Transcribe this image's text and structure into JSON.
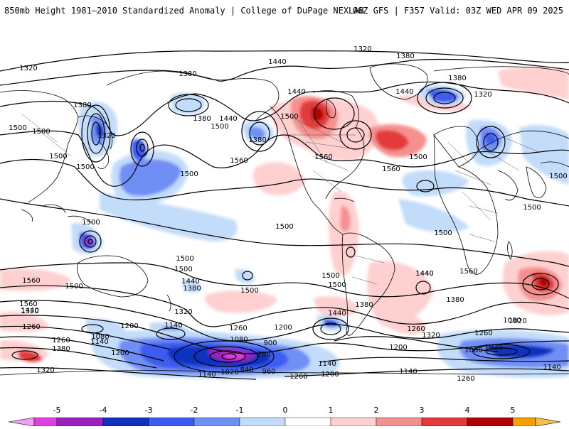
{
  "header": {
    "title": "850mb Height 1981–2010 Standardized Anomaly | College of DuPage NEXLAB",
    "run_info": "06Z GFS | F357 Valid: 03Z WED APR 09 2025"
  },
  "map": {
    "contour_labels": [
      {
        "id": "c1320a",
        "text": "1320"
      },
      {
        "id": "c1320b",
        "text": "1320"
      },
      {
        "id": "c1380a",
        "text": "1380"
      },
      {
        "id": "c1380b",
        "text": "1380"
      },
      {
        "id": "c1440a",
        "text": "1440"
      },
      {
        "id": "c1380c",
        "text": "1380"
      },
      {
        "id": "c1440b",
        "text": "1440"
      },
      {
        "id": "c1380d",
        "text": "1380"
      },
      {
        "id": "c1320c",
        "text": "1320"
      },
      {
        "id": "c1500a",
        "text": "1500"
      },
      {
        "id": "c1500b",
        "text": "1500"
      },
      {
        "id": "c1440c",
        "text": "1440"
      },
      {
        "id": "c1500c",
        "text": "1500"
      },
      {
        "id": "c1380e",
        "text": "1380"
      },
      {
        "id": "c1320d",
        "text": "1320"
      },
      {
        "id": "c1440d",
        "text": "1440"
      },
      {
        "id": "c1500d",
        "text": "1500"
      },
      {
        "id": "c1560a",
        "text": "1560"
      },
      {
        "id": "c1500e",
        "text": "1500"
      },
      {
        "id": "c1380f",
        "text": "1380"
      },
      {
        "id": "c1500f",
        "text": "1500"
      },
      {
        "id": "c1560b",
        "text": "1560"
      },
      {
        "id": "c1500g",
        "text": "1500"
      },
      {
        "id": "c1560c",
        "text": "1560"
      },
      {
        "id": "c1500h",
        "text": "1500"
      },
      {
        "id": "c1500i",
        "text": "1500"
      },
      {
        "id": "c1560d",
        "text": "1560"
      },
      {
        "id": "c1440e",
        "text": "1440"
      },
      {
        "id": "c1500j",
        "text": "1500"
      },
      {
        "id": "c1500k",
        "text": "1500"
      },
      {
        "id": "c1500l",
        "text": "1500"
      },
      {
        "id": "c1500m",
        "text": "1500"
      },
      {
        "id": "c1500n",
        "text": "1500"
      },
      {
        "id": "c1500o",
        "text": "1500"
      },
      {
        "id": "c1500p",
        "text": "1500"
      },
      {
        "id": "c1560e",
        "text": "1560"
      },
      {
        "id": "c1500q",
        "text": "1500"
      },
      {
        "id": "c1440f",
        "text": "1440"
      },
      {
        "id": "c1380g",
        "text": "1380"
      },
      {
        "id": "c1500r",
        "text": "1500"
      },
      {
        "id": "c1560f",
        "text": "1560"
      },
      {
        "id": "c1500s",
        "text": "1500"
      },
      {
        "id": "c1440g",
        "text": "1440"
      },
      {
        "id": "c1320e",
        "text": "1320"
      },
      {
        "id": "c1440h",
        "text": "1440"
      },
      {
        "id": "c1380h",
        "text": "1380"
      },
      {
        "id": "c1440i",
        "text": "1440"
      },
      {
        "id": "c1380i",
        "text": "1380"
      },
      {
        "id": "c1320f",
        "text": "1320"
      },
      {
        "id": "c1260a",
        "text": "1260"
      },
      {
        "id": "c1200a",
        "text": "1200"
      },
      {
        "id": "c1140a",
        "text": "1140"
      },
      {
        "id": "c1260b",
        "text": "1260"
      },
      {
        "id": "c1200b",
        "text": "1200"
      },
      {
        "id": "c1080a",
        "text": "1080"
      },
      {
        "id": "c1140b",
        "text": "1140"
      },
      {
        "id": "c1260c",
        "text": "1260"
      },
      {
        "id": "c1380j",
        "text": "1380"
      },
      {
        "id": "c1200c",
        "text": "1200"
      },
      {
        "id": "c1320g",
        "text": "1320"
      },
      {
        "id": "c900a",
        "text": "900"
      },
      {
        "id": "c1080b",
        "text": "1080"
      },
      {
        "id": "c1260d",
        "text": "1260"
      },
      {
        "id": "c1320h",
        "text": "1320"
      },
      {
        "id": "c1260e",
        "text": "1260"
      },
      {
        "id": "c1200d",
        "text": "1200"
      },
      {
        "id": "c1080c",
        "text": "1080"
      },
      {
        "id": "c1020a",
        "text": "1020"
      },
      {
        "id": "c1080d",
        "text": "1080"
      },
      {
        "id": "c1020b",
        "text": "1020"
      },
      {
        "id": "c1140c",
        "text": "1140"
      },
      {
        "id": "c780a",
        "text": "780"
      },
      {
        "id": "c840a",
        "text": "840"
      },
      {
        "id": "c960a",
        "text": "960"
      },
      {
        "id": "c1020c",
        "text": "1020"
      },
      {
        "id": "c1140d",
        "text": "1140"
      },
      {
        "id": "c1200e",
        "text": "1200"
      },
      {
        "id": "c1260f",
        "text": "1260"
      },
      {
        "id": "c1140e",
        "text": "1140"
      },
      {
        "id": "c1260g",
        "text": "1260"
      },
      {
        "id": "c1140f",
        "text": "1140"
      }
    ]
  },
  "colorbar": {
    "ticks": [
      "-5",
      "-4",
      "-3",
      "-2",
      "-1",
      "0",
      "1",
      "2",
      "3",
      "4",
      "5"
    ],
    "colors": [
      "#e040e0",
      "#9b20c0",
      "#1030c0",
      "#3c5cf0",
      "#6f8ff5",
      "#c2dcfa",
      "#ffffff",
      "#ffd0d0",
      "#f59090",
      "#e23a3a",
      "#b00000",
      "#f5a000"
    ]
  }
}
